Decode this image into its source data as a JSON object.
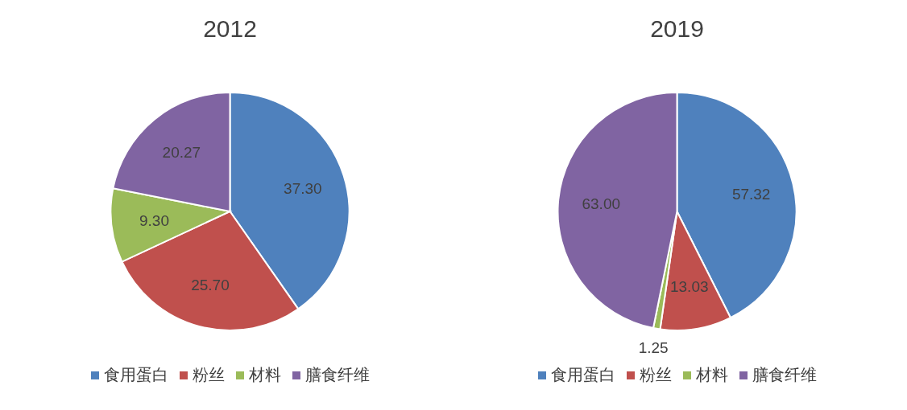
{
  "chart_data": [
    {
      "type": "pie",
      "title": "2012",
      "categories": [
        "食用蛋白",
        "粉丝",
        "材料",
        "膳食纤维"
      ],
      "values": [
        37.3,
        25.7,
        9.3,
        20.27
      ],
      "value_labels": [
        "37.30",
        "25.70",
        "9.30",
        "20.27"
      ],
      "colors": [
        "#4f81bd",
        "#c0504d",
        "#9bbb59",
        "#8064a2"
      ],
      "legend": "bottom"
    },
    {
      "type": "pie",
      "title": "2019",
      "categories": [
        "食用蛋白",
        "粉丝",
        "材料",
        "膳食纤维"
      ],
      "values": [
        57.32,
        13.03,
        1.25,
        63.0
      ],
      "value_labels": [
        "57.32",
        "13.03",
        "1.25",
        "63.00"
      ],
      "colors": [
        "#4f81bd",
        "#c0504d",
        "#9bbb59",
        "#8064a2"
      ],
      "legend": "bottom"
    }
  ]
}
